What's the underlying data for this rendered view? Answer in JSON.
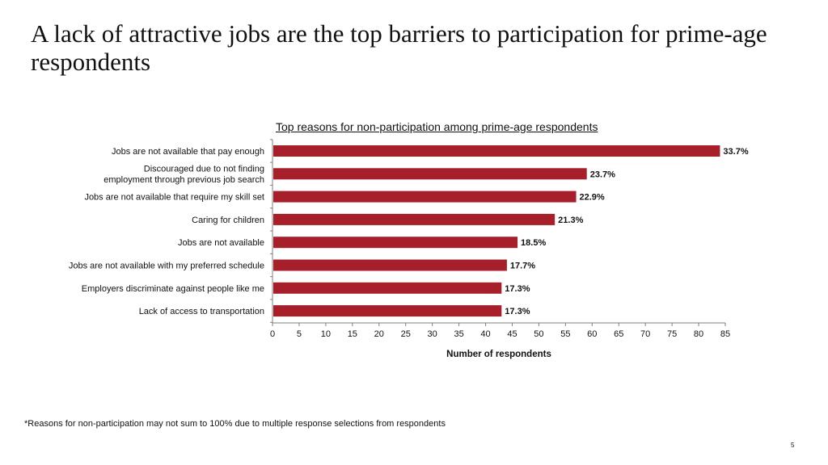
{
  "slide": {
    "title": "A lack of attractive jobs are the top barriers to participation for prime-age respondents",
    "footnote": "*Reasons for non-participation may not sum to 100% due to multiple response selections from respondents",
    "page_number": "5"
  },
  "colors": {
    "bar": "#a61f2a",
    "axis": "#7f7f7f",
    "text": "#111111"
  },
  "chart_data": {
    "type": "bar",
    "orientation": "horizontal",
    "title": "Top reasons for non-participation among prime-age respondents",
    "xlabel": "Number of respondents",
    "ylabel": "",
    "categories": [
      [
        "Jobs are not available that  pay enough"
      ],
      [
        "Discouraged due to not finding",
        "employment through  previous job search"
      ],
      [
        "Jobs are not available that  require my skill set"
      ],
      [
        "Caring for children"
      ],
      [
        "Jobs are not available"
      ],
      [
        "Jobs are not available with my preferred schedule"
      ],
      [
        "Employers discriminate against people like me"
      ],
      [
        "Lack of access to transportation"
      ]
    ],
    "values": [
      84,
      59,
      57,
      53,
      46,
      44,
      43,
      43
    ],
    "data_labels": [
      "33.7%",
      "23.7%",
      "22.9%",
      "21.3%",
      "18.5%",
      "17.7%",
      "17.3%",
      "17.3%"
    ],
    "xlim": [
      0,
      85
    ],
    "xticks": [
      0,
      5,
      10,
      15,
      20,
      25,
      30,
      35,
      40,
      45,
      50,
      55,
      60,
      65,
      70,
      75,
      80,
      85
    ],
    "grid": false,
    "legend": "none"
  }
}
